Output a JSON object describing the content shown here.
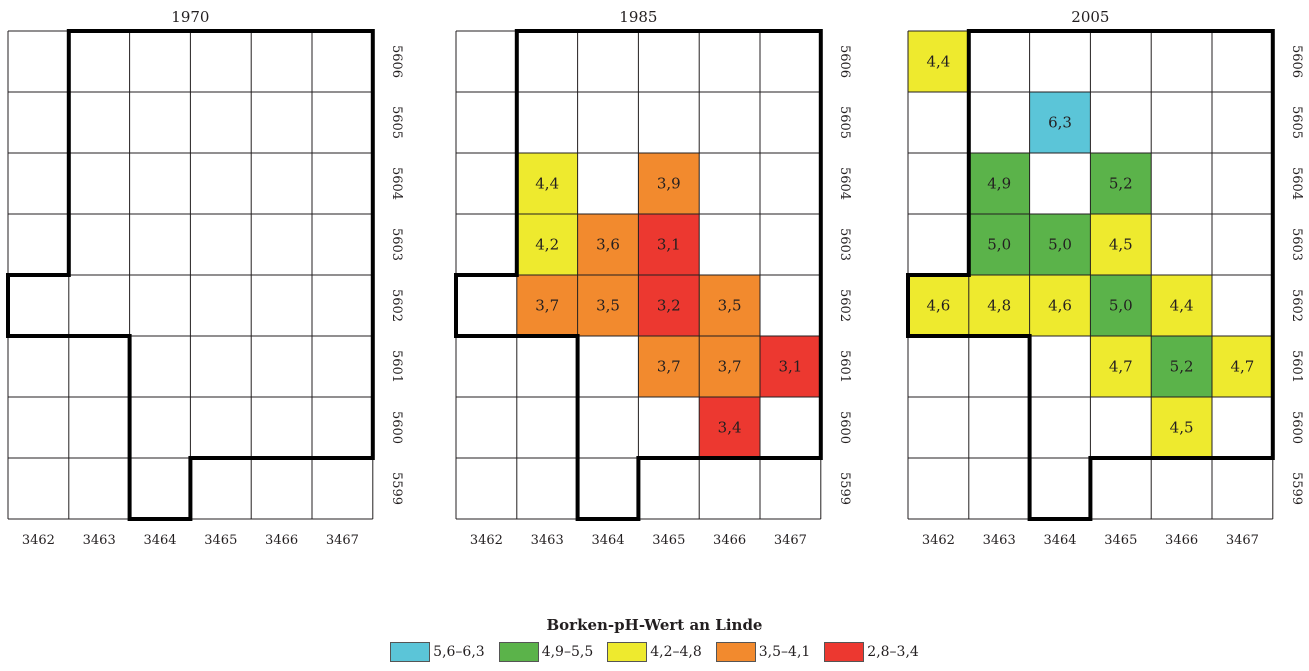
{
  "maps": [
    {
      "year": "1970",
      "x_labels": [
        "3462",
        "3463",
        "3464",
        "3465",
        "3466",
        "3467"
      ],
      "y_labels": [
        "5606",
        "5605",
        "5604",
        "5603",
        "5602",
        "5601",
        "5600",
        "5599"
      ],
      "cells": []
    },
    {
      "year": "1985",
      "x_labels": [
        "3462",
        "3463",
        "3464",
        "3465",
        "3466",
        "3467"
      ],
      "y_labels": [
        "5606",
        "5605",
        "5604",
        "5603",
        "5602",
        "5601",
        "5600",
        "5599"
      ],
      "cells": [
        {
          "x": "3463",
          "y": "5604",
          "value": "4,4",
          "class": "4,2–4,8"
        },
        {
          "x": "3465",
          "y": "5604",
          "value": "3,9",
          "class": "3,5–4,1"
        },
        {
          "x": "3463",
          "y": "5603",
          "value": "4,2",
          "class": "4,2–4,8"
        },
        {
          "x": "3464",
          "y": "5603",
          "value": "3,6",
          "class": "3,5–4,1"
        },
        {
          "x": "3465",
          "y": "5603",
          "value": "3,1",
          "class": "2,8–3,4"
        },
        {
          "x": "3463",
          "y": "5602",
          "value": "3,7",
          "class": "3,5–4,1"
        },
        {
          "x": "3464",
          "y": "5602",
          "value": "3,5",
          "class": "3,5–4,1"
        },
        {
          "x": "3465",
          "y": "5602",
          "value": "3,2",
          "class": "2,8–3,4"
        },
        {
          "x": "3466",
          "y": "5602",
          "value": "3,5",
          "class": "3,5–4,1"
        },
        {
          "x": "3465",
          "y": "5601",
          "value": "3,7",
          "class": "3,5–4,1"
        },
        {
          "x": "3466",
          "y": "5601",
          "value": "3,7",
          "class": "3,5–4,1"
        },
        {
          "x": "3467",
          "y": "5601",
          "value": "3,1",
          "class": "2,8–3,4"
        },
        {
          "x": "3466",
          "y": "5600",
          "value": "3,4",
          "class": "2,8–3,4"
        }
      ]
    },
    {
      "year": "2005",
      "x_labels": [
        "3462",
        "3463",
        "3464",
        "3465",
        "3466",
        "3467"
      ],
      "y_labels": [
        "5606",
        "5605",
        "5604",
        "5603",
        "5602",
        "5601",
        "5600",
        "5599"
      ],
      "cells": [
        {
          "x": "3462",
          "y": "5606",
          "value": "4,4",
          "class": "4,2–4,8"
        },
        {
          "x": "3464",
          "y": "5605",
          "value": "6,3",
          "class": "5,6–6,3"
        },
        {
          "x": "3463",
          "y": "5604",
          "value": "4,9",
          "class": "4,9–5,5"
        },
        {
          "x": "3465",
          "y": "5604",
          "value": "5,2",
          "class": "4,9–5,5"
        },
        {
          "x": "3463",
          "y": "5603",
          "value": "5,0",
          "class": "4,9–5,5"
        },
        {
          "x": "3464",
          "y": "5603",
          "value": "5,0",
          "class": "4,9–5,5"
        },
        {
          "x": "3465",
          "y": "5603",
          "value": "4,5",
          "class": "4,2–4,8"
        },
        {
          "x": "3462",
          "y": "5602",
          "value": "4,6",
          "class": "4,2–4,8"
        },
        {
          "x": "3463",
          "y": "5602",
          "value": "4,8",
          "class": "4,2–4,8"
        },
        {
          "x": "3464",
          "y": "5602",
          "value": "4,6",
          "class": "4,2–4,8"
        },
        {
          "x": "3465",
          "y": "5602",
          "value": "5,0",
          "class": "4,9–5,5"
        },
        {
          "x": "3466",
          "y": "5602",
          "value": "4,4",
          "class": "4,2–4,8"
        },
        {
          "x": "3465",
          "y": "5601",
          "value": "4,7",
          "class": "4,2–4,8"
        },
        {
          "x": "3466",
          "y": "5601",
          "value": "5,2",
          "class": "4,9–5,5"
        },
        {
          "x": "3467",
          "y": "5601",
          "value": "4,7",
          "class": "4,2–4,8"
        },
        {
          "x": "3466",
          "y": "5600",
          "value": "4,5",
          "class": "4,2–4,8"
        }
      ]
    }
  ],
  "legend": {
    "title": "Borken-pH-Wert an Linde",
    "items": [
      {
        "label": "5,6–6,3",
        "color": "#5bc5d8"
      },
      {
        "label": "4,9–5,5",
        "color": "#5bb34a"
      },
      {
        "label": "4,2–4,8",
        "color": "#eeea2e"
      },
      {
        "label": "3,5–4,1",
        "color": "#f28a2e"
      },
      {
        "label": "2,8–3,4",
        "color": "#ec3830"
      }
    ]
  },
  "colors": {
    "grid_line": "#231f20",
    "boundary": "#000000"
  }
}
